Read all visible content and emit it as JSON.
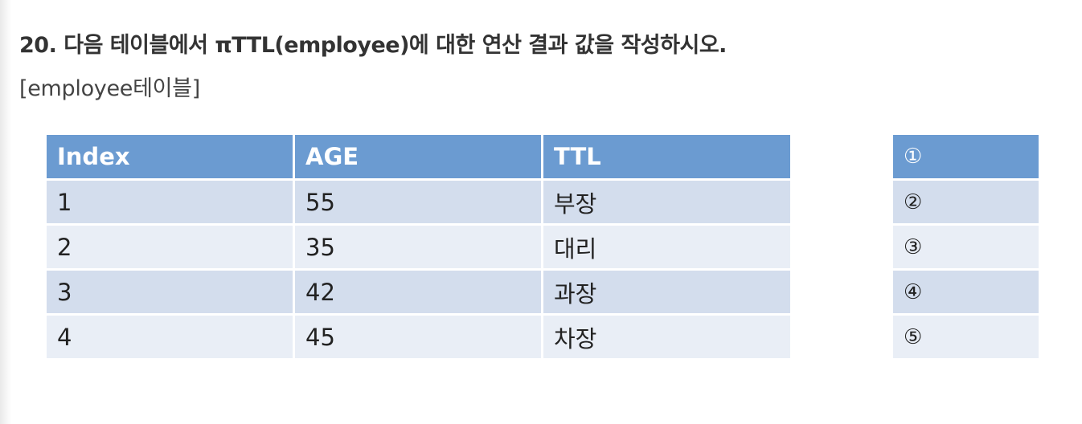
{
  "question": {
    "title": "20. 다음 테이블에서 πTTL(employee)에 대한 연산 결과 값을 작성하시오.",
    "subtitle": "[employee테이블]"
  },
  "employee_table": {
    "headers": [
      "Index",
      "AGE",
      "TTL"
    ],
    "rows": [
      [
        "1",
        "55",
        "부장"
      ],
      [
        "2",
        "35",
        "대리"
      ],
      [
        "3",
        "42",
        "과장"
      ],
      [
        "4",
        "45",
        "차장"
      ]
    ]
  },
  "answer_table": {
    "header": "①",
    "rows": [
      "②",
      "③",
      "④",
      "⑤"
    ]
  },
  "colors": {
    "header_bg": "#6b9bd1",
    "row_odd_bg": "#d3dded",
    "row_even_bg": "#e9eef6"
  }
}
